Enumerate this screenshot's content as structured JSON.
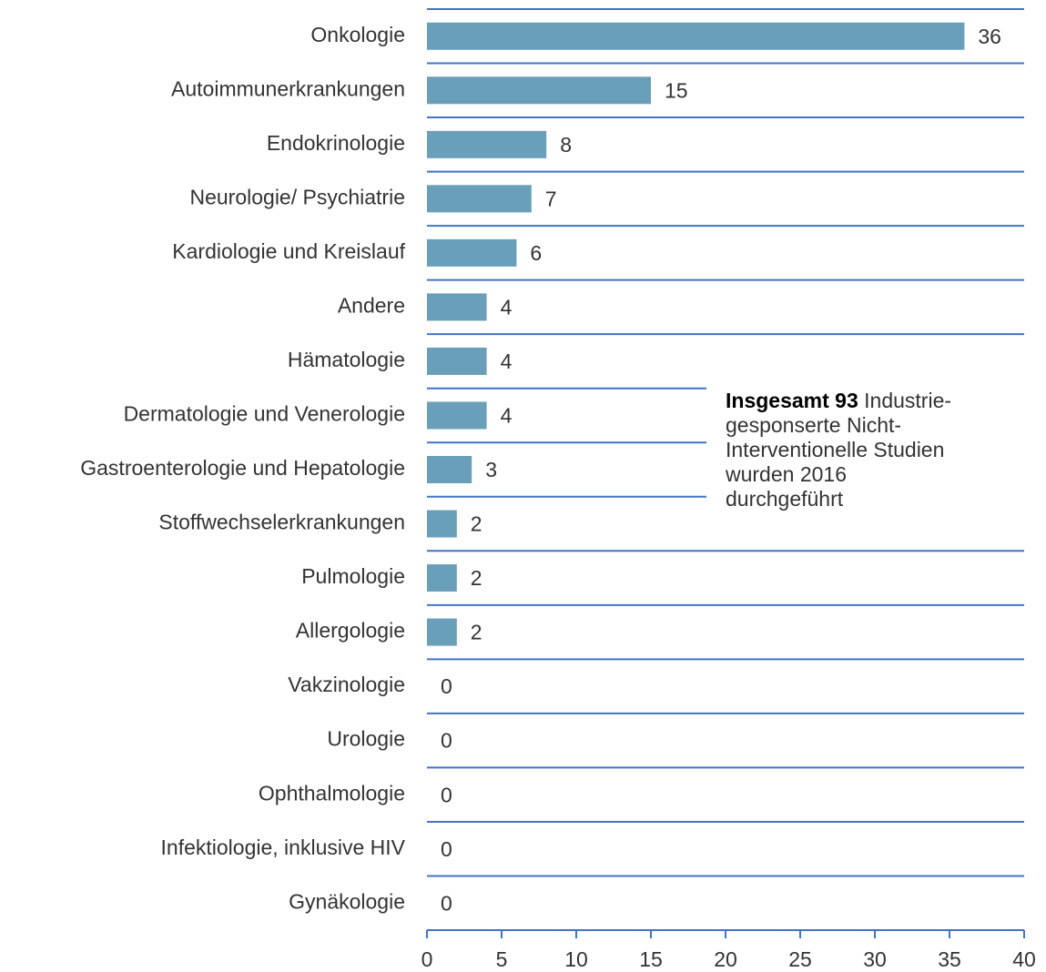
{
  "chart_data": {
    "type": "bar",
    "orientation": "horizontal",
    "categories": [
      "Onkologie",
      "Autoimmunerkrankungen",
      "Endokrinologie",
      "Neurologie/ Psychiatrie",
      "Kardiologie und Kreislauf",
      "Andere",
      "Hämatologie",
      "Dermatologie und Venerologie",
      "Gastroenterologie und Hepatologie",
      "Stoffwechselerkrankungen",
      "Pulmologie",
      "Allergologie",
      "Vakzinologie",
      "Urologie",
      "Ophthalmologie",
      "Infektiologie, inklusive HIV",
      "Gynäkologie"
    ],
    "values": [
      36,
      15,
      8,
      7,
      6,
      4,
      4,
      4,
      3,
      2,
      2,
      2,
      0,
      0,
      0,
      0,
      0
    ],
    "color": "#6a9fb9",
    "xlim": [
      0,
      40
    ],
    "xticks": [
      0,
      5,
      10,
      15,
      20,
      25,
      30,
      35,
      40
    ],
    "annotation": {
      "bold": "Insgesamt 93",
      "lines": [
        " Industrie-",
        "gesponserte Nicht-",
        "Interventionelle Studien",
        "wurden 2016",
        "durchgeführt"
      ]
    }
  }
}
